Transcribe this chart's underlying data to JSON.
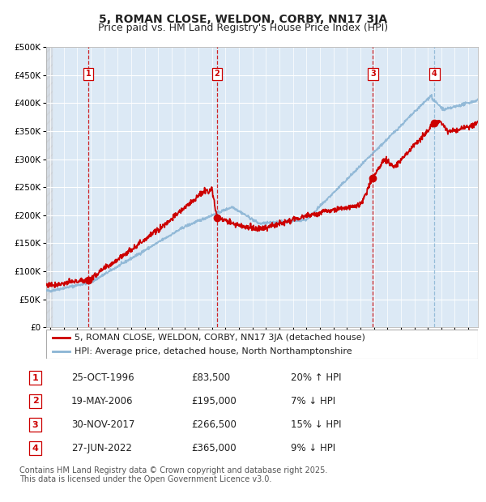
{
  "title": "5, ROMAN CLOSE, WELDON, CORBY, NN17 3JA",
  "subtitle": "Price paid vs. HM Land Registry's House Price Index (HPI)",
  "legend_line1": "5, ROMAN CLOSE, WELDON, CORBY, NN17 3JA (detached house)",
  "legend_line2": "HPI: Average price, detached house, North Northamptonshire",
  "footer1": "Contains HM Land Registry data © Crown copyright and database right 2025.",
  "footer2": "This data is licensed under the Open Government Licence v3.0.",
  "transaction_dates_decimal": [
    1996.82,
    2006.38,
    2017.92,
    2022.49
  ],
  "transaction_prices": [
    83500,
    195000,
    266500,
    365000
  ],
  "table_rows": [
    [
      "1",
      "25-OCT-1996",
      "£83,500",
      "20% ↑ HPI"
    ],
    [
      "2",
      "19-MAY-2006",
      "£195,000",
      "7% ↓ HPI"
    ],
    [
      "3",
      "30-NOV-2017",
      "£266,500",
      "15% ↓ HPI"
    ],
    [
      "4",
      "27-JUN-2022",
      "£365,000",
      "9% ↓ HPI"
    ]
  ],
  "ylim": [
    0,
    500000
  ],
  "yticks": [
    0,
    50000,
    100000,
    150000,
    200000,
    250000,
    300000,
    350000,
    400000,
    450000,
    500000
  ],
  "xlim_start": 1993.7,
  "xlim_end": 2025.7,
  "background_color": "#dce9f5",
  "red_line_color": "#cc0000",
  "blue_line_color": "#8ab4d4",
  "grid_color": "#ffffff",
  "box_edge_color": "#cc0000",
  "title_fontsize": 10,
  "subtitle_fontsize": 9,
  "tick_fontsize": 7,
  "legend_fontsize": 8,
  "table_fontsize": 8.5,
  "footer_fontsize": 7
}
